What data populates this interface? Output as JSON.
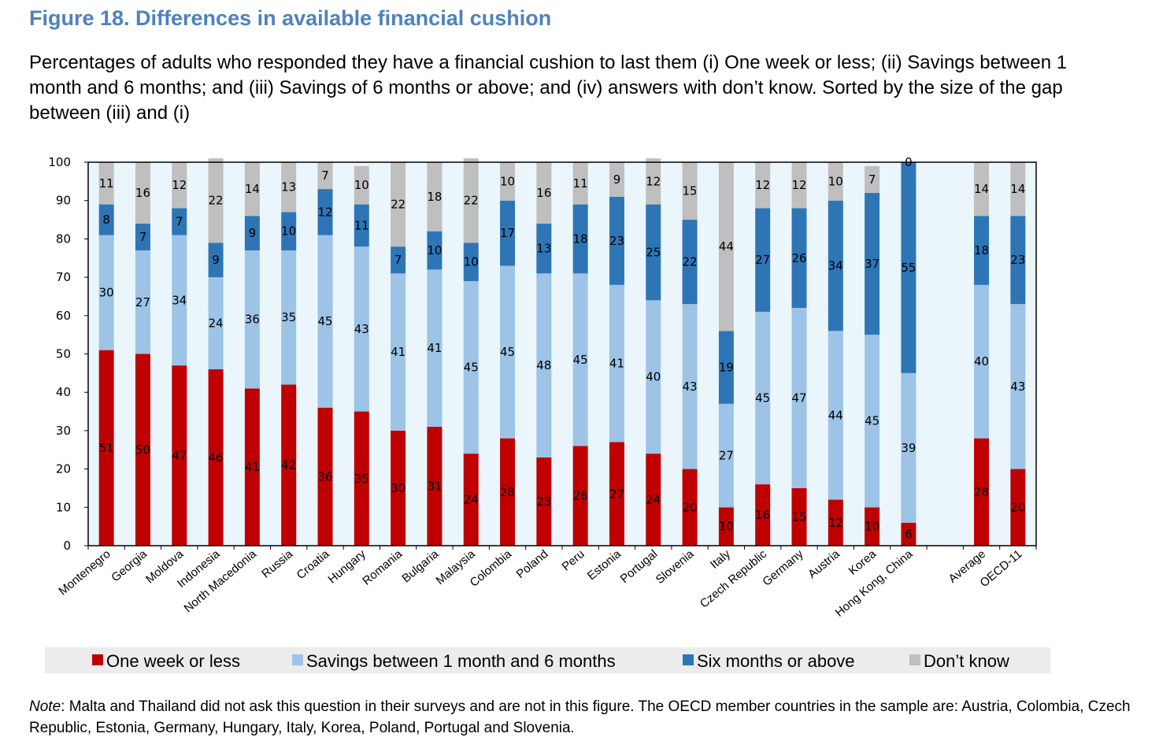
{
  "header": {
    "title": "Figure 18. Differences in available financial cushion",
    "subtitle": "Percentages of adults who responded they have a financial cushion to last them (i) One week or less; (ii) Savings between 1 month and 6 months; and (iii) Savings of 6 months or above; and (iv) answers with don’t know. Sorted by the size of the gap between (iii) and (i)"
  },
  "note": {
    "label": "Note",
    "text": ": Malta and Thailand did not ask this question in their surveys and are not in this figure. The OECD member countries in the sample are: Austria, Colombia, Czech Republic, Estonia, Germany, Hungary, Italy, Korea, Poland, Portugal and Slovenia."
  },
  "chart_data": {
    "type": "bar",
    "stacked": true,
    "title": "",
    "xlabel": "",
    "ylabel": "",
    "ylim": [
      0,
      100
    ],
    "yticks": [
      0,
      10,
      20,
      30,
      40,
      50,
      60,
      70,
      80,
      90,
      100
    ],
    "grid": false,
    "legend_position": "bottom",
    "categories": [
      "Montenegro",
      "Georgia",
      "Moldova",
      "Indonesia",
      "North Macedonia",
      "Russia",
      "Croatia",
      "Hungary",
      "Romania",
      "Bulgaria",
      "Malaysia",
      "Colombia",
      "Poland",
      "Peru",
      "Estonia",
      "Portugal",
      "Slovenia",
      "Italy",
      "Czech Republic",
      "Germany",
      "Austria",
      "Korea",
      "Hong Kong, China",
      "",
      "Average",
      "OECD-11"
    ],
    "series": [
      {
        "name": "One week or less",
        "color": "#c00000",
        "values": [
          51,
          50,
          47,
          46,
          41,
          42,
          36,
          35,
          30,
          31,
          24,
          28,
          23,
          26,
          27,
          24,
          20,
          10,
          16,
          15,
          12,
          10,
          6,
          null,
          28,
          20
        ]
      },
      {
        "name": "Savings between 1 month and 6 months",
        "color": "#9dc3e6",
        "values": [
          30,
          27,
          34,
          24,
          36,
          35,
          45,
          43,
          41,
          41,
          45,
          45,
          48,
          45,
          41,
          40,
          43,
          27,
          45,
          47,
          44,
          45,
          39,
          null,
          40,
          43
        ]
      },
      {
        "name": "Six months or above",
        "color": "#2e75b6",
        "values": [
          8,
          7,
          7,
          9,
          9,
          10,
          12,
          11,
          7,
          10,
          10,
          17,
          13,
          18,
          23,
          25,
          22,
          19,
          27,
          26,
          34,
          37,
          55,
          null,
          18,
          23
        ]
      },
      {
        "name": "Don’t know",
        "color": "#bfbfbf",
        "values": [
          11,
          16,
          12,
          22,
          14,
          13,
          7,
          10,
          22,
          18,
          22,
          10,
          16,
          11,
          9,
          12,
          15,
          44,
          12,
          12,
          10,
          7,
          0,
          null,
          14,
          14
        ]
      }
    ]
  },
  "colors": {
    "title": "#4f81bd",
    "plot_background": "#eaf6fb",
    "legend_background": "#ececec"
  }
}
